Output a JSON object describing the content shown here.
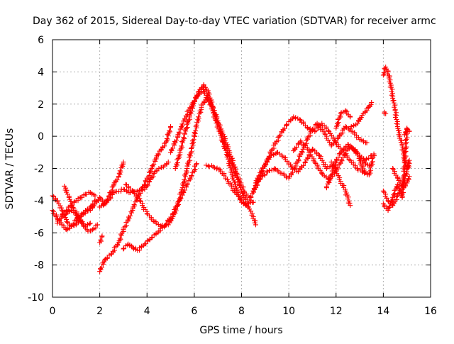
{
  "chart_data": {
    "type": "scatter",
    "title": "Day 362 of 2015, Sidereal Day-to-day VTEC variation (SDTVAR) for receiver armc",
    "xlabel": "GPS time / hours",
    "ylabel": "SDTVAR / TECUs",
    "xlim": [
      0,
      16
    ],
    "ylim": [
      -10,
      6
    ],
    "xticks": [
      "0",
      "2",
      "4",
      "6",
      "8",
      "10",
      "12",
      "14",
      "16"
    ],
    "yticks": [
      "-10",
      "-8",
      "-6",
      "-4",
      "-2",
      "0",
      "2",
      "4",
      "6"
    ],
    "grid": true,
    "marker": "+",
    "colors": {
      "series": "#ff0000",
      "grid": "#b0b0b0",
      "axis": "#000000"
    },
    "series": [
      {
        "points": [
          [
            0.0,
            -3.7
          ],
          [
            0.2,
            -4.0
          ],
          [
            0.4,
            -4.6
          ],
          [
            0.6,
            -5.3
          ],
          [
            0.8,
            -5.6
          ],
          [
            1.0,
            -5.5
          ],
          [
            1.2,
            -5.0
          ],
          [
            1.4,
            -4.7
          ],
          [
            1.6,
            -4.6
          ],
          [
            1.8,
            -4.2
          ],
          [
            2.0,
            -3.8
          ],
          [
            2.2,
            -4.2
          ],
          [
            2.4,
            -3.7
          ],
          [
            2.6,
            -3.0
          ],
          [
            2.8,
            -2.5
          ],
          [
            3.0,
            -1.6
          ]
        ]
      },
      {
        "points": [
          [
            0.0,
            -4.6
          ],
          [
            0.2,
            -5.1
          ],
          [
            0.4,
            -5.5
          ],
          [
            0.6,
            -5.8
          ],
          [
            0.8,
            -5.6
          ],
          [
            1.0,
            -5.2
          ],
          [
            1.2,
            -4.9
          ],
          [
            1.4,
            -4.6
          ],
          [
            1.6,
            -4.4
          ],
          [
            1.8,
            -4.0
          ]
        ]
      },
      {
        "points": [
          [
            0.5,
            -3.1
          ],
          [
            0.7,
            -3.8
          ],
          [
            0.9,
            -4.5
          ],
          [
            1.1,
            -5.0
          ],
          [
            1.3,
            -5.5
          ],
          [
            1.5,
            -5.9
          ],
          [
            1.7,
            -5.8
          ],
          [
            1.9,
            -5.5
          ]
        ]
      },
      {
        "points": [
          [
            0.4,
            -4.9
          ],
          [
            0.6,
            -4.6
          ],
          [
            0.8,
            -4.3
          ],
          [
            1.0,
            -4.0
          ],
          [
            1.2,
            -3.8
          ],
          [
            1.4,
            -3.6
          ],
          [
            1.6,
            -3.5
          ],
          [
            1.8,
            -3.7
          ]
        ]
      },
      {
        "points": [
          [
            0.2,
            -5.4
          ],
          [
            0.4,
            -5.0
          ],
          [
            0.6,
            -4.8
          ],
          [
            0.8,
            -4.6
          ],
          [
            1.0,
            -4.9
          ],
          [
            1.2,
            -5.3
          ],
          [
            1.4,
            -5.6
          ],
          [
            1.6,
            -5.4
          ]
        ]
      },
      {
        "points": [
          [
            2.0,
            -4.4
          ],
          [
            2.3,
            -4.1
          ],
          [
            2.6,
            -3.5
          ],
          [
            3.0,
            -3.3
          ],
          [
            3.3,
            -3.5
          ],
          [
            3.6,
            -3.4
          ],
          [
            3.9,
            -3.3
          ],
          [
            4.1,
            -2.8
          ],
          [
            4.3,
            -2.3
          ],
          [
            4.5,
            -2.0
          ],
          [
            4.7,
            -1.9
          ],
          [
            4.9,
            -1.6
          ]
        ]
      },
      {
        "points": [
          [
            2.0,
            -8.4
          ],
          [
            2.2,
            -7.7
          ],
          [
            2.5,
            -7.3
          ],
          [
            2.8,
            -6.6
          ],
          [
            3.0,
            -5.8
          ],
          [
            3.2,
            -5.2
          ],
          [
            3.4,
            -4.5
          ],
          [
            3.6,
            -3.8
          ],
          [
            3.8,
            -3.2
          ],
          [
            4.0,
            -2.7
          ],
          [
            4.2,
            -2.0
          ],
          [
            4.4,
            -1.3
          ],
          [
            4.6,
            -0.8
          ],
          [
            4.8,
            -0.4
          ],
          [
            5.0,
            0.6
          ]
        ]
      },
      {
        "points": [
          [
            2.0,
            -6.6
          ],
          [
            2.1,
            -6.2
          ]
        ]
      },
      {
        "points": [
          [
            3.0,
            -7.0
          ],
          [
            3.2,
            -6.7
          ],
          [
            3.4,
            -6.9
          ],
          [
            3.6,
            -7.1
          ],
          [
            3.9,
            -6.7
          ],
          [
            4.2,
            -6.3
          ],
          [
            4.5,
            -5.9
          ],
          [
            4.8,
            -5.5
          ],
          [
            5.1,
            -4.8
          ],
          [
            5.4,
            -3.9
          ],
          [
            5.7,
            -3.0
          ],
          [
            6.0,
            -2.1
          ],
          [
            6.1,
            -1.7
          ]
        ]
      },
      {
        "points": [
          [
            3.1,
            -3.0
          ],
          [
            3.4,
            -3.4
          ],
          [
            3.7,
            -4.0
          ],
          [
            4.0,
            -4.8
          ],
          [
            4.3,
            -5.3
          ],
          [
            4.6,
            -5.6
          ],
          [
            4.9,
            -5.5
          ],
          [
            5.1,
            -5.0
          ],
          [
            5.3,
            -4.3
          ],
          [
            5.5,
            -3.2
          ],
          [
            5.7,
            -2.0
          ],
          [
            5.9,
            -0.7
          ],
          [
            6.1,
            0.7
          ],
          [
            6.3,
            1.8
          ],
          [
            6.5,
            2.4
          ],
          [
            6.7,
            2.0
          ],
          [
            6.9,
            1.0
          ],
          [
            7.1,
            0.2
          ],
          [
            7.3,
            -0.6
          ],
          [
            7.6,
            -1.7
          ],
          [
            7.9,
            -3.0
          ],
          [
            8.1,
            -3.8
          ],
          [
            8.3,
            -4.2
          ],
          [
            8.5,
            -4.1
          ]
        ]
      },
      {
        "points": [
          [
            5.2,
            -2.0
          ],
          [
            5.4,
            -1.0
          ],
          [
            5.6,
            0.2
          ],
          [
            5.8,
            1.2
          ],
          [
            6.0,
            2.2
          ],
          [
            6.2,
            2.8
          ],
          [
            6.4,
            3.2
          ],
          [
            6.6,
            2.7
          ],
          [
            6.8,
            1.8
          ],
          [
            7.0,
            0.8
          ],
          [
            7.2,
            -0.3
          ],
          [
            7.4,
            -1.2
          ],
          [
            7.6,
            -2.4
          ],
          [
            7.8,
            -3.3
          ],
          [
            8.0,
            -4.1
          ],
          [
            8.2,
            -4.3
          ]
        ]
      },
      {
        "points": [
          [
            5.0,
            -1.0
          ],
          [
            5.3,
            0.0
          ],
          [
            5.6,
            1.1
          ],
          [
            5.9,
            2.0
          ],
          [
            6.2,
            2.6
          ],
          [
            6.4,
            2.9
          ],
          [
            6.6,
            2.3
          ],
          [
            6.9,
            1.3
          ],
          [
            7.2,
            0.2
          ],
          [
            7.5,
            -1.0
          ],
          [
            7.8,
            -2.3
          ],
          [
            8.1,
            -3.4
          ],
          [
            8.4,
            -4.0
          ]
        ]
      },
      {
        "points": [
          [
            6.5,
            -1.8
          ],
          [
            6.8,
            -1.9
          ],
          [
            7.1,
            -2.1
          ],
          [
            7.4,
            -2.7
          ],
          [
            7.7,
            -3.4
          ],
          [
            8.0,
            -4.0
          ],
          [
            8.3,
            -4.4
          ],
          [
            8.5,
            -5.0
          ],
          [
            8.6,
            -5.5
          ]
        ]
      },
      {
        "points": [
          [
            8.4,
            -3.8
          ],
          [
            8.7,
            -2.7
          ],
          [
            9.0,
            -1.8
          ],
          [
            9.3,
            -0.8
          ],
          [
            9.6,
            0.0
          ],
          [
            9.9,
            0.7
          ],
          [
            10.2,
            1.2
          ],
          [
            10.5,
            1.0
          ],
          [
            10.8,
            0.5
          ],
          [
            11.1,
            0.3
          ],
          [
            11.4,
            0.8
          ],
          [
            11.7,
            0.3
          ],
          [
            12.0,
            -0.4
          ],
          [
            12.3,
            -1.0
          ],
          [
            12.6,
            -1.5
          ],
          [
            12.9,
            -2.0
          ],
          [
            13.2,
            -2.3
          ]
        ]
      },
      {
        "points": [
          [
            8.6,
            -2.9
          ],
          [
            8.9,
            -2.0
          ],
          [
            9.2,
            -1.3
          ],
          [
            9.5,
            -1.0
          ],
          [
            9.8,
            -1.3
          ],
          [
            10.1,
            -1.9
          ],
          [
            10.4,
            -2.2
          ],
          [
            10.7,
            -1.6
          ],
          [
            11.0,
            -0.8
          ],
          [
            11.3,
            -1.2
          ],
          [
            11.6,
            -2.0
          ],
          [
            11.9,
            -1.8
          ],
          [
            12.2,
            -1.0
          ],
          [
            12.5,
            -0.5
          ],
          [
            12.8,
            -0.9
          ],
          [
            13.1,
            -1.6
          ],
          [
            13.4,
            -1.8
          ]
        ]
      },
      {
        "points": [
          [
            8.5,
            -3.4
          ],
          [
            8.8,
            -2.6
          ],
          [
            9.1,
            -2.2
          ],
          [
            9.4,
            -2.0
          ],
          [
            9.7,
            -2.3
          ],
          [
            10.0,
            -2.6
          ],
          [
            10.3,
            -1.8
          ],
          [
            10.6,
            -0.8
          ],
          [
            10.9,
            0.2
          ],
          [
            11.2,
            0.8
          ],
          [
            11.5,
            0.2
          ],
          [
            11.8,
            -0.6
          ],
          [
            12.1,
            -0.1
          ],
          [
            12.4,
            0.6
          ],
          [
            12.7,
            0.3
          ],
          [
            13.0,
            -0.2
          ],
          [
            13.3,
            -0.4
          ]
        ]
      },
      {
        "points": [
          [
            10.2,
            -0.9
          ],
          [
            10.5,
            -0.3
          ],
          [
            10.8,
            -0.8
          ],
          [
            11.1,
            -1.6
          ],
          [
            11.4,
            -2.3
          ],
          [
            11.7,
            -2.7
          ],
          [
            12.0,
            -2.2
          ],
          [
            12.3,
            -1.3
          ],
          [
            12.6,
            -0.6
          ],
          [
            12.9,
            -1.0
          ],
          [
            13.2,
            -1.5
          ],
          [
            13.5,
            -1.2
          ]
        ]
      },
      {
        "points": [
          [
            11.8,
            -1.6
          ],
          [
            12.0,
            -2.2
          ],
          [
            12.2,
            -2.8
          ],
          [
            12.4,
            -3.4
          ],
          [
            12.6,
            -4.3
          ]
        ]
      },
      {
        "points": [
          [
            11.6,
            -3.2
          ],
          [
            11.8,
            -2.4
          ],
          [
            12.0,
            -1.8
          ]
        ]
      },
      {
        "points": [
          [
            12.6,
            0.5
          ],
          [
            12.9,
            0.8
          ],
          [
            13.1,
            1.3
          ],
          [
            13.3,
            1.6
          ],
          [
            13.5,
            2.1
          ]
        ]
      },
      {
        "points": [
          [
            12.0,
            0.5
          ],
          [
            12.2,
            1.4
          ],
          [
            12.4,
            1.6
          ],
          [
            12.6,
            1.2
          ]
        ]
      },
      {
        "points": [
          [
            13.0,
            -1.5
          ],
          [
            13.2,
            -2.2
          ],
          [
            13.4,
            -2.4
          ],
          [
            13.6,
            -1.1
          ]
        ]
      },
      {
        "points": [
          [
            14.0,
            3.8
          ],
          [
            14.1,
            4.3
          ],
          [
            14.2,
            4.0
          ],
          [
            14.3,
            3.3
          ],
          [
            14.4,
            2.5
          ],
          [
            14.5,
            1.6
          ],
          [
            14.6,
            0.6
          ],
          [
            14.7,
            0.0
          ],
          [
            14.8,
            -0.6
          ],
          [
            14.9,
            -1.4
          ],
          [
            15.0,
            -2.0
          ],
          [
            15.1,
            -1.5
          ]
        ]
      },
      {
        "points": [
          [
            14.05,
            1.5
          ],
          [
            14.1,
            1.4
          ]
        ]
      },
      {
        "points": [
          [
            14.4,
            -2.0
          ],
          [
            14.6,
            -2.6
          ],
          [
            14.8,
            -3.1
          ],
          [
            15.0,
            -2.2
          ],
          [
            15.1,
            -1.7
          ]
        ]
      },
      {
        "points": [
          [
            14.0,
            -3.4
          ],
          [
            14.2,
            -4.0
          ],
          [
            14.4,
            -4.3
          ],
          [
            14.6,
            -3.7
          ],
          [
            14.8,
            -3.3
          ],
          [
            15.0,
            -2.9
          ],
          [
            15.1,
            -2.5
          ]
        ]
      },
      {
        "points": [
          [
            14.0,
            -4.2
          ],
          [
            14.2,
            -4.6
          ],
          [
            14.4,
            -3.8
          ],
          [
            14.6,
            -3.0
          ],
          [
            14.8,
            -3.8
          ],
          [
            15.0,
            0.4
          ]
        ]
      },
      {
        "points": [
          [
            14.9,
            0.1
          ],
          [
            15.0,
            0.5
          ],
          [
            15.1,
            0.3
          ]
        ]
      }
    ]
  }
}
